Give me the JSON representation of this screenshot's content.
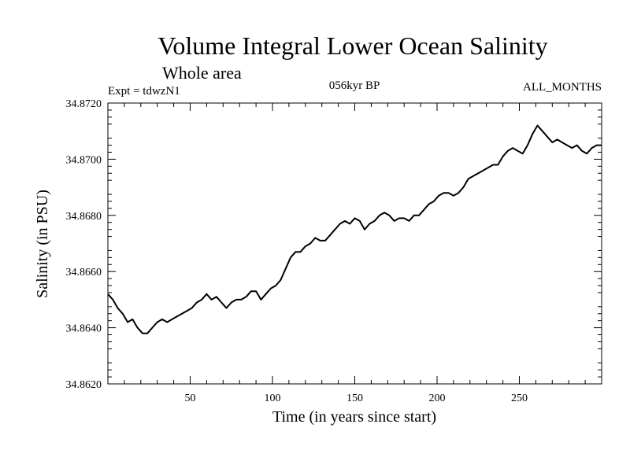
{
  "chart_data": {
    "type": "line",
    "title": "Volume Integral Lower Ocean Salinity",
    "subtitle": "Whole area",
    "experiment": "Expt = tdwzN1",
    "period": "056kyr BP",
    "months": "ALL_MONTHS",
    "xlabel": "Time (in years since start)",
    "ylabel": "Salinity (in PSU)",
    "xlim": [
      0,
      300
    ],
    "ylim": [
      34.862,
      34.872
    ],
    "xticks": [
      50,
      100,
      150,
      200,
      250
    ],
    "yticks": [
      "34.8620",
      "34.8640",
      "34.8660",
      "34.8680",
      "34.8700",
      "34.8720"
    ],
    "series": [
      {
        "name": "Lower ocean salinity",
        "color": "#000000",
        "x": [
          0,
          3,
          6,
          9,
          12,
          15,
          18,
          21,
          24,
          27,
          30,
          33,
          36,
          39,
          42,
          45,
          48,
          51,
          54,
          57,
          60,
          63,
          66,
          69,
          72,
          75,
          78,
          81,
          84,
          87,
          90,
          93,
          96,
          99,
          102,
          105,
          108,
          111,
          114,
          117,
          120,
          123,
          126,
          129,
          132,
          135,
          138,
          141,
          144,
          147,
          150,
          153,
          156,
          159,
          162,
          165,
          168,
          171,
          174,
          177,
          180,
          183,
          186,
          189,
          192,
          195,
          198,
          201,
          204,
          207,
          210,
          213,
          216,
          219,
          222,
          225,
          228,
          231,
          234,
          237,
          240,
          243,
          246,
          249,
          252,
          255,
          258,
          261,
          264,
          267,
          270,
          273,
          276,
          279,
          282,
          285,
          288,
          291,
          294,
          297,
          300
        ],
        "y": [
          34.8652,
          34.865,
          34.8647,
          34.8645,
          34.8642,
          34.8643,
          34.864,
          34.8638,
          34.8638,
          34.864,
          34.8642,
          34.8643,
          34.8642,
          34.8643,
          34.8644,
          34.8645,
          34.8646,
          34.8647,
          34.8649,
          34.865,
          34.8652,
          34.865,
          34.8651,
          34.8649,
          34.8647,
          34.8649,
          34.865,
          34.865,
          34.8651,
          34.8653,
          34.8653,
          34.865,
          34.8652,
          34.8654,
          34.8655,
          34.8657,
          34.8661,
          34.8665,
          34.8667,
          34.8667,
          34.8669,
          34.867,
          34.8672,
          34.8671,
          34.8671,
          34.8673,
          34.8675,
          34.8677,
          34.8678,
          34.8677,
          34.8679,
          34.8678,
          34.8675,
          34.8677,
          34.8678,
          34.868,
          34.8681,
          34.868,
          34.8678,
          34.8679,
          34.8679,
          34.8678,
          34.868,
          34.868,
          34.8682,
          34.8684,
          34.8685,
          34.8687,
          34.8688,
          34.8688,
          34.8687,
          34.8688,
          34.869,
          34.8693,
          34.8694,
          34.8695,
          34.8696,
          34.8697,
          34.8698,
          34.8698,
          34.8701,
          34.8703,
          34.8704,
          34.8703,
          34.8702,
          34.8705,
          34.8709,
          34.8712,
          34.871,
          34.8708,
          34.8706,
          34.8707,
          34.8706,
          34.8705,
          34.8704,
          34.8705,
          34.8703,
          34.8702,
          34.8704,
          34.8705,
          34.8705
        ]
      }
    ]
  }
}
